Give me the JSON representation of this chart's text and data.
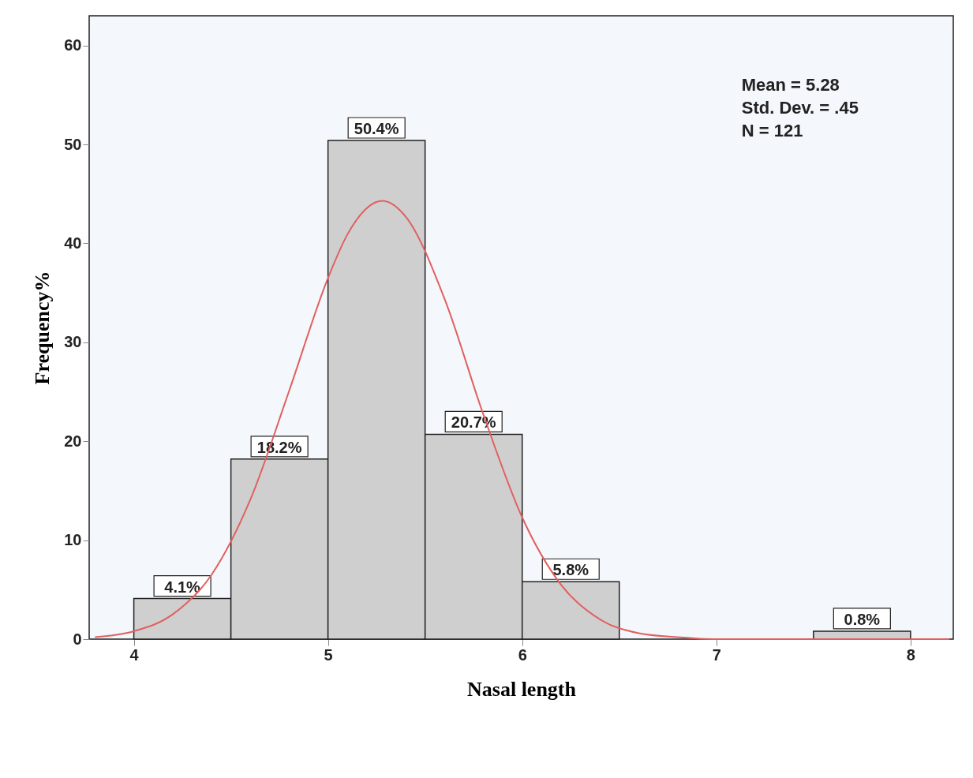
{
  "chart_data": {
    "type": "histogram",
    "xlabel": "Nasal length",
    "ylabel": "Frequency%",
    "bins": [
      4,
      4.5,
      5,
      5.5,
      6,
      6.5,
      7,
      7.5,
      8
    ],
    "values": [
      4.1,
      18.2,
      50.4,
      20.7,
      5.8,
      0,
      0,
      0.8
    ],
    "value_labels": [
      "4.1%",
      "18.2%",
      "50.4%",
      "20.7%",
      "5.8%",
      null,
      null,
      "0.8%"
    ],
    "color": "#cfcfcf",
    "xlim": [
      3.77,
      8.22
    ],
    "xticks": [
      {
        "value": 4,
        "label": "4"
      },
      {
        "value": 5,
        "label": "5"
      },
      {
        "value": 6,
        "label": "6"
      },
      {
        "value": 7,
        "label": "7"
      },
      {
        "value": 8,
        "label": "8"
      }
    ],
    "ylim": [
      0,
      63
    ],
    "yticks": [
      0,
      10,
      20,
      30,
      40,
      50,
      60
    ],
    "annotations": [
      "Mean = 5.28",
      "Std. Dev. = .45",
      "N = 121"
    ],
    "series": [
      {
        "type": "line",
        "color": "#e06060",
        "x": [
          3.8,
          4.0,
          4.2,
          4.4,
          4.6,
          4.8,
          5.0,
          5.1,
          5.28,
          5.4,
          5.6,
          5.8,
          6.0,
          6.2,
          6.4,
          6.6,
          6.8,
          7.0,
          8.2
        ],
        "values": [
          0.2,
          0.8,
          2.5,
          6.5,
          14.1,
          25.1,
          36.5,
          40.9,
          44.3,
          42.7,
          34.4,
          22.7,
          12.3,
          5.5,
          2.0,
          0.6,
          0.2,
          0,
          0
        ]
      }
    ]
  }
}
